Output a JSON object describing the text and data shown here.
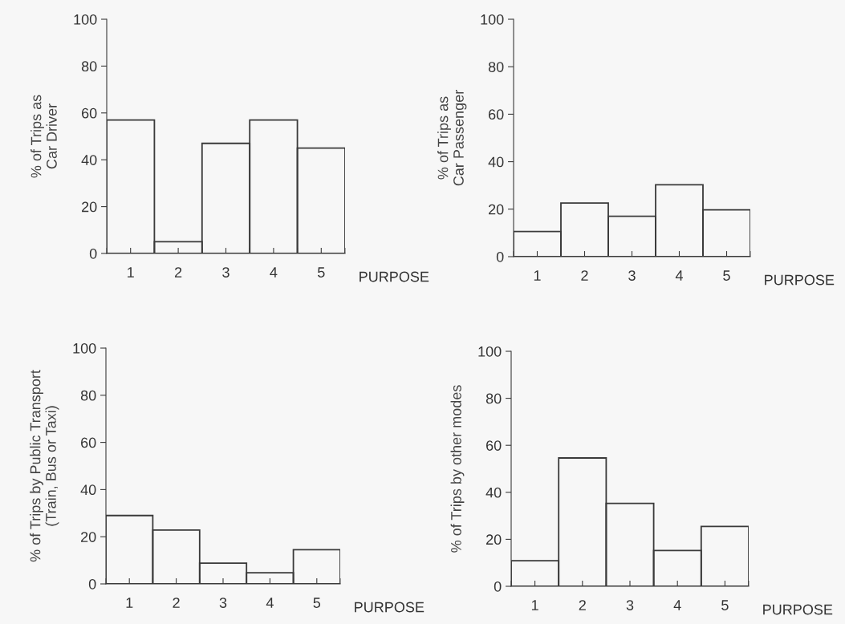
{
  "chart_data": [
    {
      "type": "bar",
      "categories": [
        "1",
        "2",
        "3",
        "4",
        "5"
      ],
      "values": [
        57,
        5,
        47,
        57,
        45
      ],
      "color": "#3a3a3a",
      "xlabel": "PURPOSE",
      "ylabel": "% of Trips as\nCar Driver",
      "ylim": [
        0,
        100
      ],
      "yticks": [
        0,
        20,
        40,
        60,
        80,
        100
      ],
      "grid": false,
      "legend": false
    },
    {
      "type": "bar",
      "categories": [
        "1",
        "2",
        "3",
        "4",
        "5"
      ],
      "values": [
        10.6,
        22.6,
        17,
        30.3,
        19.7
      ],
      "color": "#3a3a3a",
      "xlabel": "PURPOSE",
      "ylabel": "% of Trips as\nCar Passenger",
      "ylim": [
        0,
        100
      ],
      "yticks": [
        0,
        20,
        40,
        60,
        80,
        100
      ],
      "grid": false,
      "legend": false
    },
    {
      "type": "bar",
      "categories": [
        "1",
        "2",
        "3",
        "4",
        "5"
      ],
      "values": [
        29,
        22.8,
        8.8,
        4.7,
        14.5
      ],
      "color": "#3a3a3a",
      "xlabel": "PURPOSE",
      "ylabel": "% of Trips by Public Transport\n(Train, Bus or Taxi)",
      "ylim": [
        0,
        100
      ],
      "yticks": [
        0,
        20,
        40,
        60,
        80,
        100
      ],
      "grid": false,
      "legend": false
    },
    {
      "type": "bar",
      "categories": [
        "1",
        "2",
        "3",
        "4",
        "5"
      ],
      "values": [
        10.9,
        54.6,
        35.3,
        15.2,
        25.5
      ],
      "color": "#3a3a3a",
      "xlabel": "PURPOSE",
      "ylabel": "% of Trips by other modes",
      "ylim": [
        0,
        100
      ],
      "yticks": [
        0,
        20,
        40,
        60,
        80,
        100
      ],
      "grid": false,
      "legend": false
    }
  ]
}
